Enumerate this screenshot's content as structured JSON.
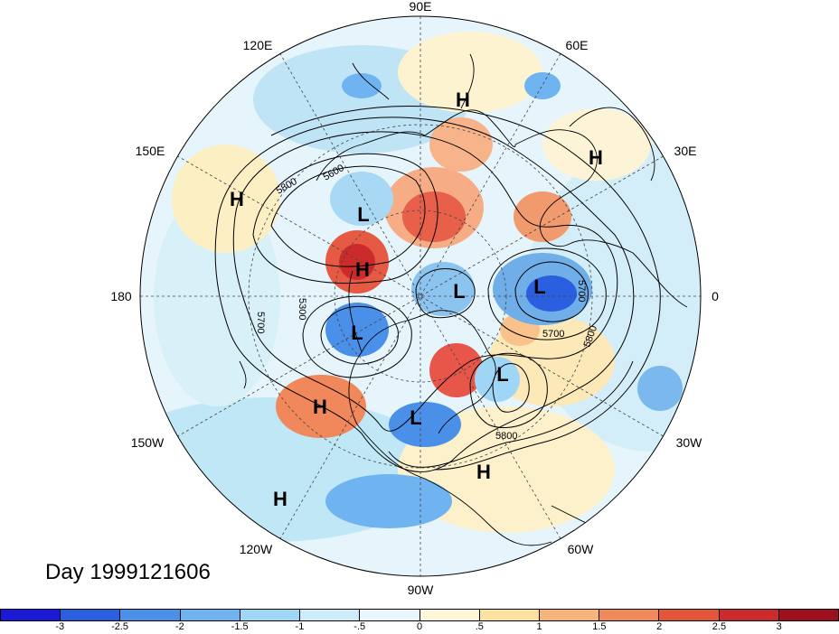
{
  "title": "Day 1999121606",
  "longitude_labels": [
    "90E",
    "60E",
    "30E",
    "0",
    "30W",
    "60W",
    "90W",
    "120W",
    "150W",
    "180",
    "150E",
    "120E"
  ],
  "pressure_centers": [
    "H",
    "H",
    "H",
    "L",
    "L",
    "H",
    "H",
    "L",
    "L",
    "L",
    "L",
    "H",
    "H",
    "H"
  ],
  "contour_labels": [
    "5800",
    "5600",
    "5300",
    "5700",
    "5700",
    "5700",
    "5800",
    "5800"
  ],
  "colorbar": {
    "colors": [
      "#1a1ad6",
      "#2a5fe0",
      "#4a8fe8",
      "#6fb3f0",
      "#9fd6f5",
      "#cdecf7",
      "#e9f6fb",
      "#fdf6d8",
      "#fbe2a2",
      "#f7b47a",
      "#f08a5a",
      "#e4553a",
      "#cc2b2b",
      "#9e0f1f"
    ],
    "tick_labels": [
      "-3",
      "-2.5",
      "-2",
      "-1.5",
      "-1",
      "-.5",
      "0",
      ".5",
      "1",
      "1.5",
      "2",
      "2.5",
      "3"
    ]
  }
}
